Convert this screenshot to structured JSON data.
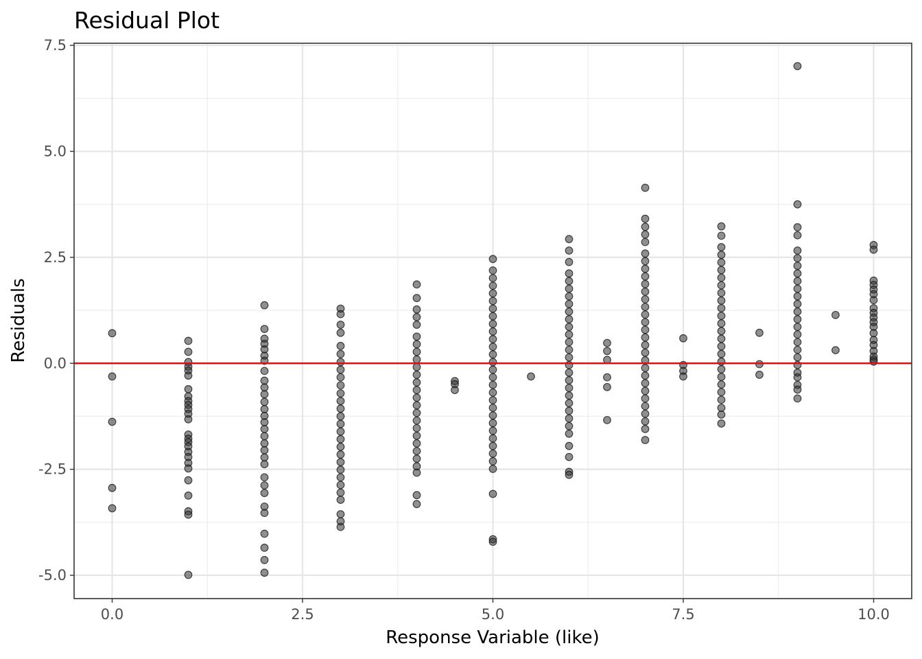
{
  "chart_data": {
    "type": "scatter",
    "title": "Residual Plot",
    "xlabel": "Response Variable (like)",
    "ylabel": "Residuals",
    "xlim": [
      -0.5,
      10.5
    ],
    "ylim": [
      -5.55,
      7.55
    ],
    "x_ticks": [
      "0.0",
      "2.5",
      "5.0",
      "7.5",
      "10.0"
    ],
    "y_ticks": [
      "-5.0",
      "-2.5",
      "0.0",
      "2.5",
      "5.0",
      "7.5"
    ],
    "grid": true,
    "reference_line": {
      "y": 0,
      "color": "#dd1111"
    },
    "point_color": "#333333",
    "series": [
      {
        "points": [
          [
            0,
            0.71
          ],
          [
            0,
            -0.31
          ],
          [
            0,
            -1.38
          ],
          [
            0,
            -2.94
          ],
          [
            0,
            -3.42
          ],
          [
            1,
            0.53
          ],
          [
            1,
            0.27
          ],
          [
            1,
            0.03
          ],
          [
            1,
            -0.08
          ],
          [
            1,
            -0.17
          ],
          [
            1,
            -0.29
          ],
          [
            1,
            -0.61
          ],
          [
            1,
            -0.78
          ],
          [
            1,
            -0.89
          ],
          [
            1,
            -0.98
          ],
          [
            1,
            -1.08
          ],
          [
            1,
            -1.19
          ],
          [
            1,
            -1.32
          ],
          [
            1,
            -1.68
          ],
          [
            1,
            -1.78
          ],
          [
            1,
            -1.86
          ],
          [
            1,
            -1.96
          ],
          [
            1,
            -2.09
          ],
          [
            1,
            -2.21
          ],
          [
            1,
            -2.35
          ],
          [
            1,
            -2.48
          ],
          [
            1,
            -2.76
          ],
          [
            1,
            -3.12
          ],
          [
            1,
            -3.49
          ],
          [
            1,
            -3.57
          ],
          [
            1,
            -4.99
          ],
          [
            2,
            1.37
          ],
          [
            2,
            0.81
          ],
          [
            2,
            0.58
          ],
          [
            2,
            0.46
          ],
          [
            2,
            0.33
          ],
          [
            2,
            0.18
          ],
          [
            2,
            0.06
          ],
          [
            2,
            -0.18
          ],
          [
            2,
            -0.41
          ],
          [
            2,
            -0.57
          ],
          [
            2,
            -0.73
          ],
          [
            2,
            -0.91
          ],
          [
            2,
            -1.08
          ],
          [
            2,
            -1.24
          ],
          [
            2,
            -1.39
          ],
          [
            2,
            -1.55
          ],
          [
            2,
            -1.72
          ],
          [
            2,
            -1.89
          ],
          [
            2,
            -2.05
          ],
          [
            2,
            -2.22
          ],
          [
            2,
            -2.38
          ],
          [
            2,
            -2.69
          ],
          [
            2,
            -2.88
          ],
          [
            2,
            -3.06
          ],
          [
            2,
            -3.38
          ],
          [
            2,
            -3.53
          ],
          [
            2,
            -4.02
          ],
          [
            2,
            -4.35
          ],
          [
            2,
            -4.64
          ],
          [
            2,
            -4.94
          ],
          [
            3,
            1.29
          ],
          [
            3,
            1.16
          ],
          [
            3,
            0.91
          ],
          [
            3,
            0.72
          ],
          [
            3,
            0.41
          ],
          [
            3,
            0.22
          ],
          [
            3,
            0.03
          ],
          [
            3,
            -0.15
          ],
          [
            3,
            -0.33
          ],
          [
            3,
            -0.52
          ],
          [
            3,
            -0.71
          ],
          [
            3,
            -0.89
          ],
          [
            3,
            -1.07
          ],
          [
            3,
            -1.25
          ],
          [
            3,
            -1.43
          ],
          [
            3,
            -1.61
          ],
          [
            3,
            -1.79
          ],
          [
            3,
            -1.97
          ],
          [
            3,
            -2.15
          ],
          [
            3,
            -2.33
          ],
          [
            3,
            -2.51
          ],
          [
            3,
            -2.69
          ],
          [
            3,
            -2.87
          ],
          [
            3,
            -3.05
          ],
          [
            3,
            -3.22
          ],
          [
            3,
            -3.56
          ],
          [
            3,
            -3.73
          ],
          [
            3,
            -3.86
          ],
          [
            4,
            1.86
          ],
          [
            4,
            1.54
          ],
          [
            4,
            1.27
          ],
          [
            4,
            1.09
          ],
          [
            4,
            0.91
          ],
          [
            4,
            0.63
          ],
          [
            4,
            0.45
          ],
          [
            4,
            0.27
          ],
          [
            4,
            0.09
          ],
          [
            4,
            -0.09
          ],
          [
            4,
            -0.27
          ],
          [
            4,
            -0.45
          ],
          [
            4,
            -0.63
          ],
          [
            4,
            -0.81
          ],
          [
            4,
            -0.99
          ],
          [
            4,
            -1.17
          ],
          [
            4,
            -1.35
          ],
          [
            4,
            -1.53
          ],
          [
            4,
            -1.71
          ],
          [
            4,
            -1.89
          ],
          [
            4,
            -2.07
          ],
          [
            4,
            -2.25
          ],
          [
            4,
            -2.43
          ],
          [
            4,
            -2.58
          ],
          [
            4,
            -3.11
          ],
          [
            4,
            -3.32
          ],
          [
            4.5,
            -0.42
          ],
          [
            4.5,
            -0.49
          ],
          [
            4.5,
            -0.63
          ],
          [
            5,
            2.46
          ],
          [
            5,
            2.19
          ],
          [
            5,
            2.01
          ],
          [
            5,
            1.83
          ],
          [
            5,
            1.65
          ],
          [
            5,
            1.47
          ],
          [
            5,
            1.29
          ],
          [
            5,
            1.11
          ],
          [
            5,
            0.93
          ],
          [
            5,
            0.75
          ],
          [
            5,
            0.57
          ],
          [
            5,
            0.39
          ],
          [
            5,
            0.21
          ],
          [
            5,
            0.03
          ],
          [
            5,
            -0.15
          ],
          [
            5,
            -0.33
          ],
          [
            5,
            -0.51
          ],
          [
            5,
            -0.69
          ],
          [
            5,
            -0.87
          ],
          [
            5,
            -1.05
          ],
          [
            5,
            -1.23
          ],
          [
            5,
            -1.41
          ],
          [
            5,
            -1.59
          ],
          [
            5,
            -1.77
          ],
          [
            5,
            -1.95
          ],
          [
            5,
            -2.13
          ],
          [
            5,
            -2.31
          ],
          [
            5,
            -2.49
          ],
          [
            5,
            -3.08
          ],
          [
            5,
            -4.15
          ],
          [
            5,
            -4.21
          ],
          [
            5.5,
            -0.31
          ],
          [
            6,
            2.93
          ],
          [
            6,
            2.66
          ],
          [
            6,
            2.39
          ],
          [
            6,
            2.12
          ],
          [
            6,
            1.94
          ],
          [
            6,
            1.76
          ],
          [
            6,
            1.58
          ],
          [
            6,
            1.4
          ],
          [
            6,
            1.22
          ],
          [
            6,
            1.04
          ],
          [
            6,
            0.86
          ],
          [
            6,
            0.68
          ],
          [
            6,
            0.5
          ],
          [
            6,
            0.32
          ],
          [
            6,
            0.14
          ],
          [
            6,
            -0.04
          ],
          [
            6,
            -0.22
          ],
          [
            6,
            -0.4
          ],
          [
            6,
            -0.58
          ],
          [
            6,
            -0.76
          ],
          [
            6,
            -0.94
          ],
          [
            6,
            -1.12
          ],
          [
            6,
            -1.3
          ],
          [
            6,
            -1.48
          ],
          [
            6,
            -1.66
          ],
          [
            6,
            -1.95
          ],
          [
            6,
            -2.21
          ],
          [
            6,
            -2.56
          ],
          [
            6,
            -2.63
          ],
          [
            6.5,
            0.48
          ],
          [
            6.5,
            0.29
          ],
          [
            6.5,
            0.08
          ],
          [
            6.5,
            -0.33
          ],
          [
            6.5,
            -0.56
          ],
          [
            6.5,
            -1.34
          ],
          [
            7,
            4.14
          ],
          [
            7,
            3.41
          ],
          [
            7,
            3.22
          ],
          [
            7,
            3.04
          ],
          [
            7,
            2.86
          ],
          [
            7,
            2.59
          ],
          [
            7,
            2.41
          ],
          [
            7,
            2.23
          ],
          [
            7,
            2.05
          ],
          [
            7,
            1.87
          ],
          [
            7,
            1.69
          ],
          [
            7,
            1.51
          ],
          [
            7,
            1.33
          ],
          [
            7,
            1.15
          ],
          [
            7,
            0.97
          ],
          [
            7,
            0.79
          ],
          [
            7,
            0.61
          ],
          [
            7,
            0.43
          ],
          [
            7,
            0.25
          ],
          [
            7,
            0.07
          ],
          [
            7,
            -0.11
          ],
          [
            7,
            -0.29
          ],
          [
            7,
            -0.47
          ],
          [
            7,
            -0.65
          ],
          [
            7,
            -0.83
          ],
          [
            7,
            -1.01
          ],
          [
            7,
            -1.19
          ],
          [
            7,
            -1.37
          ],
          [
            7,
            -1.55
          ],
          [
            7,
            -1.81
          ],
          [
            7.5,
            0.59
          ],
          [
            7.5,
            -0.04
          ],
          [
            7.5,
            -0.18
          ],
          [
            7.5,
            -0.31
          ],
          [
            8,
            3.23
          ],
          [
            8,
            3.01
          ],
          [
            8,
            2.74
          ],
          [
            8,
            2.56
          ],
          [
            8,
            2.38
          ],
          [
            8,
            2.2
          ],
          [
            8,
            2.02
          ],
          [
            8,
            1.84
          ],
          [
            8,
            1.66
          ],
          [
            8,
            1.48
          ],
          [
            8,
            1.3
          ],
          [
            8,
            1.12
          ],
          [
            8,
            0.94
          ],
          [
            8,
            0.76
          ],
          [
            8,
            0.58
          ],
          [
            8,
            0.4
          ],
          [
            8,
            0.22
          ],
          [
            8,
            0.04
          ],
          [
            8,
            -0.14
          ],
          [
            8,
            -0.32
          ],
          [
            8,
            -0.5
          ],
          [
            8,
            -0.68
          ],
          [
            8,
            -0.86
          ],
          [
            8,
            -1.05
          ],
          [
            8,
            -1.21
          ],
          [
            8,
            -1.42
          ],
          [
            8.5,
            0.72
          ],
          [
            8.5,
            -0.02
          ],
          [
            8.5,
            -0.27
          ],
          [
            9,
            7.01
          ],
          [
            9,
            3.75
          ],
          [
            9,
            3.21
          ],
          [
            9,
            3.02
          ],
          [
            9,
            2.66
          ],
          [
            9,
            2.48
          ],
          [
            9,
            2.3
          ],
          [
            9,
            2.12
          ],
          [
            9,
            1.94
          ],
          [
            9,
            1.76
          ],
          [
            9,
            1.58
          ],
          [
            9,
            1.4
          ],
          [
            9,
            1.22
          ],
          [
            9,
            1.04
          ],
          [
            9,
            0.86
          ],
          [
            9,
            0.68
          ],
          [
            9,
            0.5
          ],
          [
            9,
            0.32
          ],
          [
            9,
            0.14
          ],
          [
            9,
            -0.04
          ],
          [
            9,
            -0.22
          ],
          [
            9,
            -0.33
          ],
          [
            9,
            -0.51
          ],
          [
            9,
            -0.62
          ],
          [
            9,
            -0.83
          ],
          [
            9.5,
            1.14
          ],
          [
            9.5,
            0.31
          ],
          [
            10,
            2.79
          ],
          [
            10,
            2.68
          ],
          [
            10,
            1.95
          ],
          [
            10,
            1.85
          ],
          [
            10,
            1.74
          ],
          [
            10,
            1.63
          ],
          [
            10,
            1.49
          ],
          [
            10,
            1.3
          ],
          [
            10,
            1.19
          ],
          [
            10,
            1.08
          ],
          [
            10,
            0.97
          ],
          [
            10,
            0.86
          ],
          [
            10,
            0.71
          ],
          [
            10,
            0.55
          ],
          [
            10,
            0.43
          ],
          [
            10,
            0.29
          ],
          [
            10,
            0.16
          ],
          [
            10,
            0.09
          ],
          [
            10,
            0.04
          ]
        ]
      }
    ]
  }
}
